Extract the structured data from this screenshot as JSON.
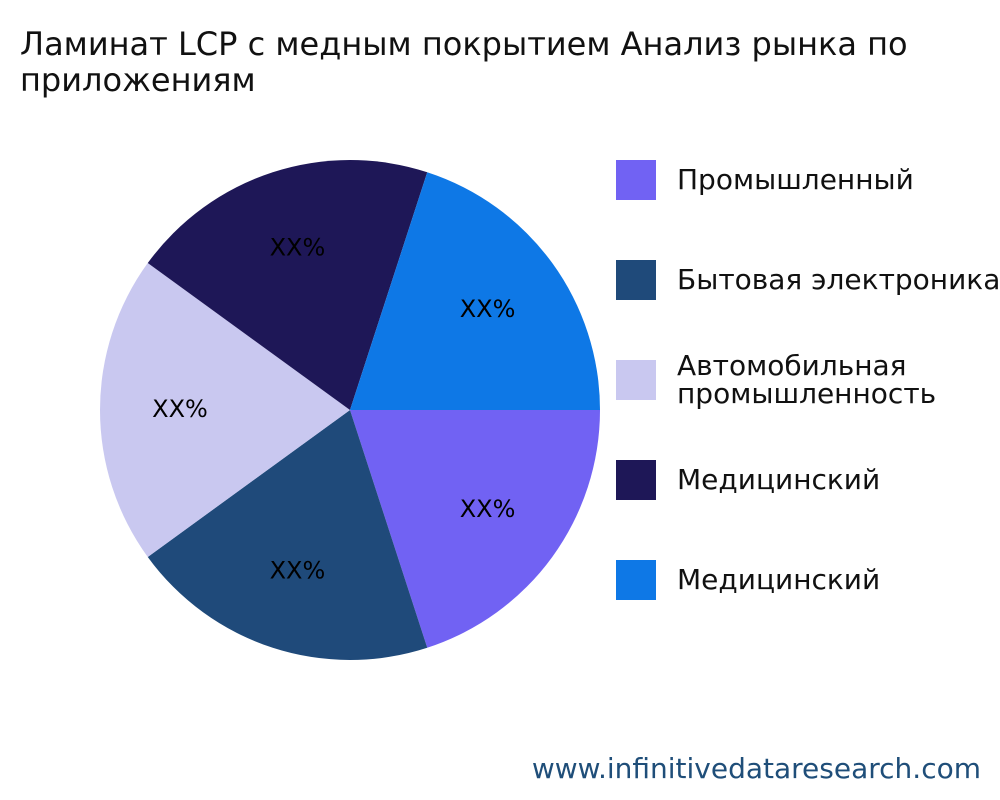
{
  "chart_data": {
    "type": "pie",
    "title": "Ламинат LCP с медным покрытием Анализ рынка по приложениям",
    "slices": [
      {
        "label": "Промышленный",
        "value": 20,
        "display": "XX%",
        "color": "#7162f3"
      },
      {
        "label": "Бытовая электроника",
        "value": 20,
        "display": "XX%",
        "color": "#1f4a7a"
      },
      {
        "label": "Автомобильная промышленность",
        "value": 20,
        "display": "XX%",
        "color": "#c9c8f0"
      },
      {
        "label": "Медицинский",
        "value": 20,
        "display": "XX%",
        "color": "#1e1757"
      },
      {
        "label": "Медицинский",
        "value": 20,
        "display": "XX%",
        "color": "#0e78e6"
      }
    ],
    "legend": {
      "position": "right"
    }
  },
  "watermark": "www.infinitivedataresearch.com"
}
